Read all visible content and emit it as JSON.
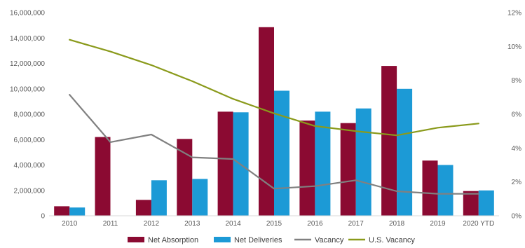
{
  "chart_data": {
    "type": "bar",
    "categories": [
      "2010",
      "2011",
      "2012",
      "2013",
      "2014",
      "2015",
      "2016",
      "2017",
      "2018",
      "2019",
      "2020 YTD"
    ],
    "series": [
      {
        "name": "Net Absorption",
        "kind": "bar",
        "axis": "left",
        "color": "#8b0a32",
        "values": [
          750000,
          6200000,
          1250000,
          6050000,
          8200000,
          14850000,
          7500000,
          7300000,
          11800000,
          4350000,
          1950000
        ]
      },
      {
        "name": "Net Deliveries",
        "kind": "bar",
        "axis": "left",
        "color": "#1c9ad6",
        "values": [
          650000,
          0,
          2800000,
          2900000,
          8150000,
          9850000,
          8200000,
          8450000,
          10000000,
          4000000,
          2000000
        ]
      },
      {
        "name": "Vacancy",
        "kind": "line",
        "axis": "right",
        "color": "#808080",
        "values": [
          7.15,
          4.35,
          4.8,
          3.45,
          3.35,
          1.6,
          1.75,
          2.1,
          1.45,
          1.3,
          1.3
        ]
      },
      {
        "name": "U.S. Vacancy",
        "kind": "line",
        "axis": "right",
        "color": "#8a9a1b",
        "values": [
          10.4,
          9.7,
          8.9,
          7.95,
          6.9,
          6.05,
          5.3,
          5.0,
          4.75,
          5.2,
          5.45
        ]
      }
    ],
    "ylim_left": [
      0,
      16000000
    ],
    "ylim_right": [
      0,
      12
    ],
    "left_ticks": [
      "0",
      "2,000,000",
      "4,000,000",
      "6,000,000",
      "8,000,000",
      "10,000,000",
      "12,000,000",
      "14,000,000",
      "16,000,000"
    ],
    "right_ticks": [
      "0%",
      "2%",
      "4%",
      "6%",
      "8%",
      "10%",
      "12%"
    ],
    "grid": false,
    "legend_position": "bottom"
  }
}
